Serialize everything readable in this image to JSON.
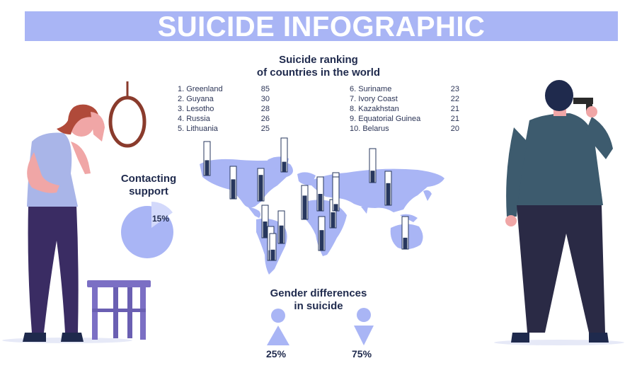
{
  "banner": {
    "title": "SUICIDE INFOGRAPHIC"
  },
  "ranking": {
    "heading_line1": "Suicide ranking",
    "heading_line2": "of countries in the world",
    "countries": [
      {
        "rank_name": "1. Greenland",
        "value": "85"
      },
      {
        "rank_name": "2. Guyana",
        "value": "30"
      },
      {
        "rank_name": "3. Lesotho",
        "value": "28"
      },
      {
        "rank_name": "4. Russia",
        "value": "26"
      },
      {
        "rank_name": "5. Lithuania",
        "value": "25"
      },
      {
        "rank_name": "6. Suriname",
        "value": "23"
      },
      {
        "rank_name": "7. Ivory Coast",
        "value": "22"
      },
      {
        "rank_name": "8. Kazakhstan",
        "value": "21"
      },
      {
        "rank_name": "9. Equatorial Guinea",
        "value": "21"
      },
      {
        "rank_name": "10. Belarus",
        "value": "20"
      }
    ]
  },
  "support": {
    "heading_line1": "Contacting",
    "heading_line2": "support",
    "percent_label": "15%",
    "percent_value": 15
  },
  "gender": {
    "heading_line1": "Gender differences",
    "heading_line2": "in suicide",
    "female_label": "25%",
    "male_label": "75%"
  },
  "map_indicators": [
    {
      "region": "north-america-west",
      "level": 0.45
    },
    {
      "region": "north-america-central",
      "level": 0.6
    },
    {
      "region": "greenland",
      "level": 0.3
    },
    {
      "region": "canada-east",
      "level": 0.8
    },
    {
      "region": "central-america",
      "level": 0.5
    },
    {
      "region": "south-america-north",
      "level": 0.55
    },
    {
      "region": "south-america-east",
      "level": 0.3
    },
    {
      "region": "south-america-south",
      "level": 0.4
    },
    {
      "region": "europe-west",
      "level": 0.7
    },
    {
      "region": "europe-central",
      "level": 0.5
    },
    {
      "region": "europe-east",
      "level": 0.55
    },
    {
      "region": "africa-west",
      "level": 0.6
    },
    {
      "region": "africa-south",
      "level": 0.7
    },
    {
      "region": "russia",
      "level": 0.35
    },
    {
      "region": "russia-east",
      "level": 0.65
    },
    {
      "region": "central-asia",
      "level": 0.2
    },
    {
      "region": "australia",
      "level": 0.35
    }
  ],
  "colors": {
    "banner": "#a9b5f5",
    "map": "#a9b5f5",
    "text": "#1f2a4d",
    "indicator_fill": "#27375e"
  }
}
